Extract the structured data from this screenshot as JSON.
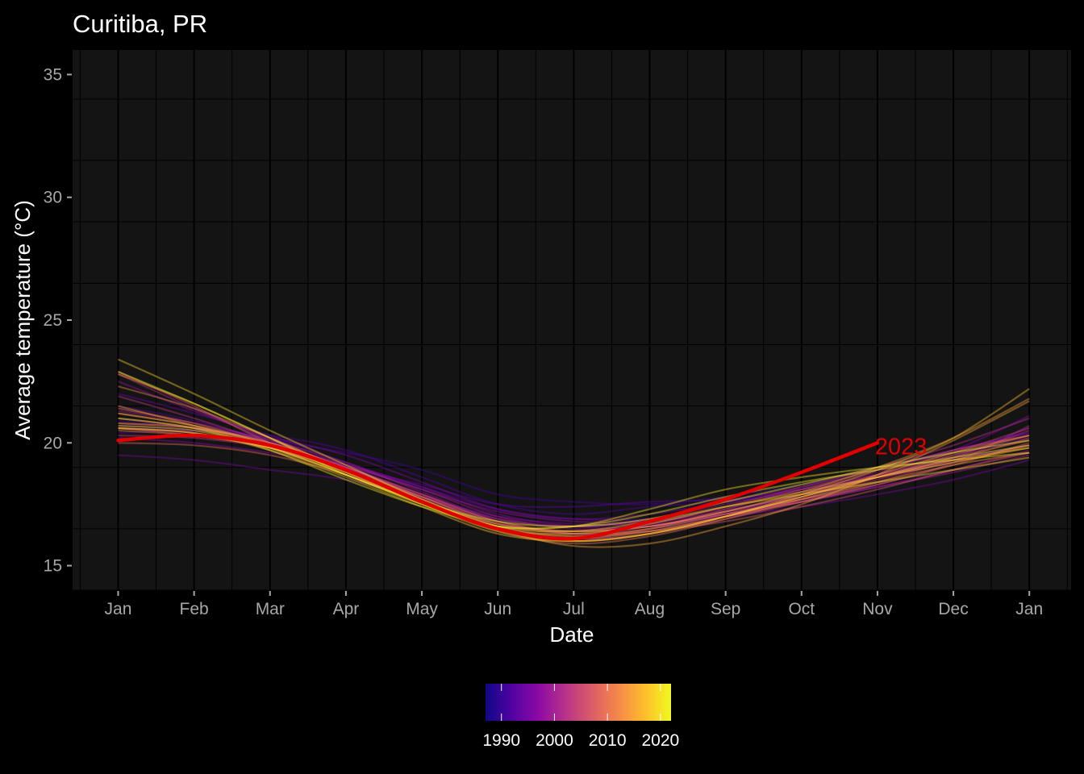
{
  "chart_data": {
    "type": "line",
    "title": "Curitiba, PR",
    "xlabel": "Date",
    "ylabel": "Average temperature (°C)",
    "ylim": [
      14,
      36
    ],
    "y_ticks": [
      15,
      20,
      25,
      30,
      35
    ],
    "x_ticks": [
      "Jan",
      "Feb",
      "Mar",
      "Apr",
      "May",
      "Jun",
      "Jul",
      "Aug",
      "Sep",
      "Oct",
      "Nov",
      "Dec",
      "Jan"
    ],
    "x_months_domain": [
      -0.6,
      12.55
    ],
    "grid": true,
    "colors": {
      "background": "#000000",
      "panel": "#141414",
      "grid": "#000000",
      "highlight": "#e00000"
    },
    "highlight": {
      "name": "2023",
      "label": "2023",
      "x": [
        0,
        1,
        2,
        3,
        4,
        5,
        6,
        7,
        8,
        9,
        10
      ],
      "values": [
        20.1,
        20.3,
        19.9,
        18.9,
        17.6,
        16.5,
        16.1,
        16.8,
        17.7,
        18.8,
        20.0
      ]
    },
    "x": [
      0,
      1,
      2,
      3,
      4,
      5,
      6,
      7,
      8,
      9,
      10,
      11,
      12
    ],
    "series": [
      {
        "year": 1991,
        "values": [
          20.9,
          20.6,
          20.1,
          19.6,
          18.9,
          17.9,
          17.6,
          17.5,
          17.8,
          18.3,
          19.0,
          19.7,
          20.4
        ]
      },
      {
        "year": 1992,
        "values": [
          20.4,
          20.5,
          20.3,
          19.7,
          18.6,
          17.5,
          17.1,
          17.4,
          17.6,
          18.0,
          18.6,
          19.4,
          20.6
        ]
      },
      {
        "year": 1993,
        "values": [
          21.5,
          20.9,
          20.0,
          19.0,
          18.3,
          17.5,
          17.4,
          17.6,
          17.7,
          18.1,
          18.6,
          19.3,
          19.9
        ]
      },
      {
        "year": 1994,
        "values": [
          22.0,
          21.2,
          20.3,
          19.2,
          18.2,
          17.3,
          16.9,
          16.9,
          17.3,
          17.8,
          18.6,
          19.5,
          20.2
        ]
      },
      {
        "year": 1995,
        "values": [
          19.5,
          19.3,
          18.9,
          18.5,
          17.8,
          17.0,
          16.7,
          16.7,
          17.0,
          17.4,
          17.9,
          18.5,
          19.3
        ]
      },
      {
        "year": 1996,
        "values": [
          20.7,
          20.5,
          20.2,
          19.5,
          18.4,
          17.3,
          16.9,
          17.1,
          17.6,
          18.2,
          18.9,
          19.7,
          21.1
        ]
      },
      {
        "year": 1997,
        "values": [
          20.2,
          20.0,
          19.6,
          19.1,
          18.2,
          17.1,
          16.6,
          16.6,
          17.1,
          17.9,
          18.8,
          19.7,
          20.4
        ]
      },
      {
        "year": 1998,
        "values": [
          22.5,
          21.3,
          20.2,
          19.1,
          18.1,
          17.2,
          16.8,
          16.8,
          17.1,
          17.6,
          18.2,
          18.9,
          19.7
        ]
      },
      {
        "year": 1999,
        "values": [
          21.3,
          20.8,
          20.1,
          19.2,
          18.0,
          16.9,
          16.6,
          16.9,
          17.5,
          18.1,
          18.7,
          19.3,
          19.9
        ]
      },
      {
        "year": 2000,
        "values": [
          20.6,
          20.4,
          19.9,
          19.1,
          18.1,
          17.0,
          16.5,
          16.6,
          17.1,
          17.6,
          18.2,
          18.8,
          19.5
        ]
      },
      {
        "year": 2001,
        "values": [
          22.8,
          21.4,
          20.1,
          19.0,
          17.9,
          16.9,
          16.6,
          16.8,
          17.2,
          17.7,
          18.3,
          19.2,
          20.7
        ]
      },
      {
        "year": 2002,
        "values": [
          20.8,
          20.6,
          20.0,
          19.0,
          17.8,
          16.7,
          16.4,
          16.7,
          17.4,
          18.2,
          19.0,
          19.9,
          21.0
        ]
      },
      {
        "year": 2003,
        "values": [
          21.9,
          21.0,
          20.0,
          19.0,
          17.9,
          16.8,
          16.3,
          16.5,
          17.0,
          17.7,
          18.5,
          19.4,
          20.5
        ]
      },
      {
        "year": 2004,
        "values": [
          20.3,
          20.2,
          19.8,
          19.0,
          17.9,
          16.8,
          16.4,
          16.6,
          17.2,
          17.9,
          18.7,
          19.6,
          20.6
        ]
      },
      {
        "year": 2005,
        "values": [
          21.2,
          20.7,
          20.0,
          19.0,
          17.8,
          16.6,
          16.1,
          16.3,
          16.9,
          17.6,
          18.4,
          19.3,
          20.2
        ]
      },
      {
        "year": 2006,
        "values": [
          21.0,
          20.6,
          19.9,
          18.9,
          17.7,
          16.5,
          16.1,
          16.5,
          17.3,
          18.1,
          18.9,
          19.7,
          20.3
        ]
      },
      {
        "year": 2007,
        "values": [
          22.9,
          21.5,
          20.0,
          18.9,
          17.8,
          16.8,
          16.3,
          16.4,
          16.8,
          17.4,
          18.1,
          18.9,
          19.6
        ]
      },
      {
        "year": 2008,
        "values": [
          20.6,
          20.3,
          19.8,
          18.9,
          17.8,
          16.7,
          16.3,
          16.6,
          17.2,
          17.9,
          18.6,
          19.2,
          19.9
        ]
      },
      {
        "year": 2009,
        "values": [
          20.0,
          19.9,
          19.5,
          18.7,
          17.6,
          16.5,
          16.1,
          16.4,
          17.0,
          17.6,
          18.3,
          19.1,
          20.0
        ]
      },
      {
        "year": 2010,
        "values": [
          21.4,
          20.8,
          19.9,
          18.8,
          17.6,
          16.4,
          15.9,
          16.2,
          16.9,
          17.7,
          18.6,
          19.5,
          20.3
        ]
      },
      {
        "year": 2011,
        "values": [
          20.5,
          20.3,
          19.8,
          18.8,
          17.6,
          16.5,
          16.0,
          16.3,
          17.0,
          17.8,
          18.6,
          19.4,
          20.1
        ]
      },
      {
        "year": 2012,
        "values": [
          22.3,
          21.4,
          20.2,
          18.9,
          17.7,
          16.6,
          16.2,
          16.4,
          17.0,
          17.8,
          18.7,
          19.6,
          20.3
        ]
      },
      {
        "year": 2013,
        "values": [
          20.8,
          20.6,
          20.0,
          18.9,
          17.6,
          16.5,
          16.2,
          16.5,
          17.1,
          17.7,
          18.4,
          19.1,
          19.6
        ]
      },
      {
        "year": 2014,
        "values": [
          21.5,
          20.7,
          19.8,
          18.7,
          17.6,
          16.7,
          16.4,
          16.6,
          17.2,
          18.0,
          19.0,
          20.2,
          21.8
        ]
      },
      {
        "year": 2015,
        "values": [
          22.8,
          21.6,
          20.2,
          18.9,
          17.6,
          16.5,
          15.8,
          15.9,
          16.6,
          17.5,
          18.7,
          20.1,
          21.7
        ]
      },
      {
        "year": 2016,
        "values": [
          20.6,
          20.4,
          19.8,
          18.7,
          17.5,
          16.5,
          16.3,
          16.7,
          17.4,
          18.0,
          18.6,
          19.2,
          19.8
        ]
      },
      {
        "year": 2017,
        "values": [
          21.2,
          20.7,
          19.9,
          18.8,
          17.5,
          16.4,
          16.0,
          16.3,
          17.0,
          17.9,
          18.9,
          20.2,
          22.2
        ]
      },
      {
        "year": 2018,
        "values": [
          20.6,
          20.4,
          19.7,
          18.6,
          17.4,
          16.3,
          16.0,
          16.3,
          17.0,
          17.8,
          18.6,
          19.3,
          19.8
        ]
      },
      {
        "year": 2019,
        "values": [
          23.4,
          22.0,
          20.5,
          19.1,
          17.7,
          16.6,
          16.4,
          16.8,
          17.4,
          17.9,
          18.4,
          18.9,
          19.4
        ]
      },
      {
        "year": 2020,
        "values": [
          20.7,
          20.5,
          19.8,
          18.7,
          17.5,
          16.6,
          16.6,
          17.3,
          18.1,
          18.6,
          19.0,
          19.3,
          19.6
        ]
      },
      {
        "year": 2021,
        "values": [
          21.0,
          20.6,
          19.7,
          18.5,
          17.4,
          16.6,
          16.6,
          17.1,
          17.8,
          18.4,
          18.9,
          19.4,
          19.9
        ]
      },
      {
        "year": 2022,
        "values": [
          22.9,
          21.6,
          20.2,
          18.7,
          17.6,
          16.8,
          16.6,
          16.9,
          17.6,
          18.3,
          19.0,
          19.6,
          20.1
        ]
      }
    ],
    "legend": {
      "type": "colorbar",
      "position": "bottom",
      "range": [
        1987,
        2022
      ],
      "ticks": [
        "1990",
        "2000",
        "2010",
        "2020"
      ],
      "tick_values": [
        1990,
        2000,
        2010,
        2020
      ],
      "colormap": [
        "#0d0887",
        "#5302a3",
        "#8b0aa5",
        "#b83289",
        "#db5c68",
        "#f48849",
        "#febd2a",
        "#f0f921"
      ]
    }
  }
}
